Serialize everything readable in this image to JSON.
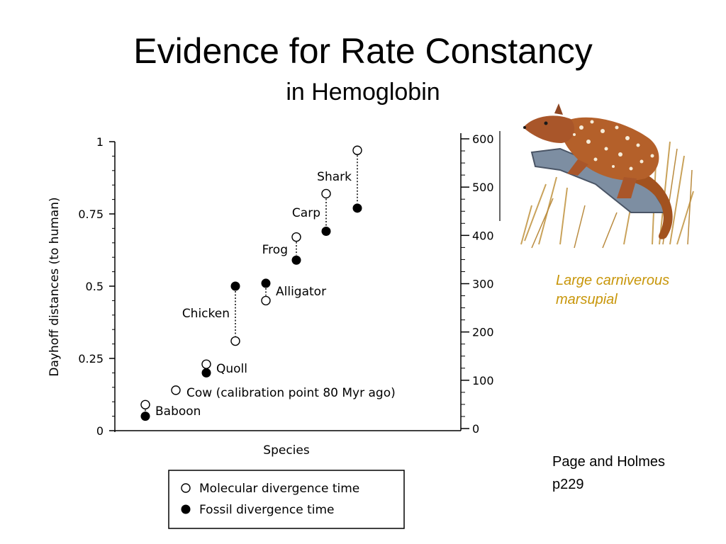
{
  "slide": {
    "title": "Evidence for Rate Constancy",
    "subtitle": "in Hemoglobin"
  },
  "illustration": {
    "name": "quoll-illustration",
    "caption_lines": [
      "Large carniverous",
      "marsupial"
    ],
    "caption_color": "#c8960a"
  },
  "citation": {
    "lines": [
      "Page and Holmes",
      "p229"
    ]
  },
  "chart_data": {
    "type": "scatter",
    "title": "",
    "xlabel": "Species",
    "ylabel": "Dayhoff distances (to human)",
    "ylabel_right": "",
    "ylim": [
      0,
      1
    ],
    "y_ticks": [
      "0",
      "0.25",
      "0.5",
      "0.75",
      "1"
    ],
    "y_tick_values": [
      0,
      0.25,
      0.5,
      0.75,
      1
    ],
    "y2lim": [
      0,
      600
    ],
    "y2_ticks": [
      "0",
      "100",
      "200",
      "300",
      "400",
      "500",
      "600"
    ],
    "y2_tick_values": [
      0,
      100,
      200,
      300,
      400,
      500,
      600
    ],
    "grid": false,
    "categories": [
      "Baboon",
      "Cow (calibration point 80 Myr ago)",
      "Quoll",
      "Chicken",
      "Alligator",
      "Frog",
      "Carp",
      "Shark"
    ],
    "series": [
      {
        "name": "Molecular divergence time",
        "marker": "open-circle",
        "values": [
          0.09,
          0.14,
          0.23,
          0.31,
          0.45,
          0.67,
          0.82,
          0.97
        ]
      },
      {
        "name": "Fossil divergence time",
        "marker": "filled-circle",
        "values": [
          0.05,
          null,
          0.2,
          0.5,
          0.51,
          0.59,
          0.69,
          0.77
        ]
      }
    ],
    "legend": {
      "placement": "bottom",
      "entries": [
        "Molecular divergence time",
        "Fossil divergence time"
      ]
    }
  }
}
